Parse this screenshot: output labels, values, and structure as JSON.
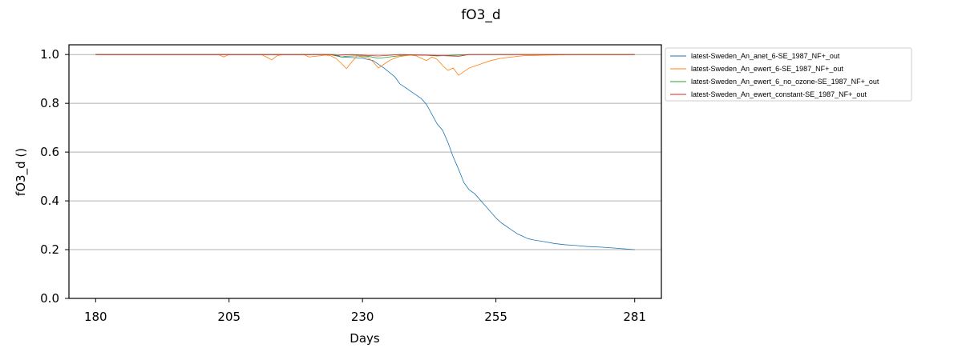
{
  "chart_data": {
    "type": "line",
    "title": "fO3_d",
    "xlabel": "Days",
    "ylabel": "fO3_d ()",
    "xlim": [
      175,
      286
    ],
    "ylim": [
      0,
      1.04
    ],
    "x_ticks": [
      180,
      205,
      230,
      255,
      281
    ],
    "y_ticks": [
      0.0,
      0.2,
      0.4,
      0.6,
      0.8,
      1.0
    ],
    "y_tick_labels": [
      "0.0",
      "0.2",
      "0.4",
      "0.6",
      "0.8",
      "1.0"
    ],
    "grid": "y",
    "legend_position": "outside-top-right",
    "series": [
      {
        "name": "latest-Sweden_An_anet_6-SE_1987_NF+_out",
        "color": "#1f77b4",
        "points": [
          [
            180,
            1.0
          ],
          [
            224,
            1.0
          ],
          [
            226,
            0.99
          ],
          [
            228,
            0.988
          ],
          [
            230,
            0.985
          ],
          [
            232,
            0.975
          ],
          [
            234,
            0.945
          ],
          [
            236,
            0.91
          ],
          [
            237,
            0.88
          ],
          [
            239,
            0.85
          ],
          [
            241,
            0.82
          ],
          [
            242,
            0.795
          ],
          [
            243,
            0.755
          ],
          [
            244,
            0.715
          ],
          [
            245,
            0.69
          ],
          [
            246,
            0.64
          ],
          [
            247,
            0.58
          ],
          [
            248,
            0.53
          ],
          [
            249,
            0.475
          ],
          [
            250,
            0.445
          ],
          [
            251,
            0.43
          ],
          [
            252,
            0.405
          ],
          [
            253,
            0.38
          ],
          [
            254,
            0.355
          ],
          [
            255,
            0.33
          ],
          [
            256,
            0.31
          ],
          [
            258,
            0.28
          ],
          [
            259,
            0.265
          ],
          [
            260,
            0.255
          ],
          [
            261,
            0.245
          ],
          [
            262,
            0.24
          ],
          [
            264,
            0.233
          ],
          [
            266,
            0.225
          ],
          [
            268,
            0.22
          ],
          [
            270,
            0.217
          ],
          [
            272,
            0.213
          ],
          [
            275,
            0.21
          ],
          [
            278,
            0.205
          ],
          [
            281,
            0.2
          ]
        ]
      },
      {
        "name": "latest-Sweden_An_ewert_6-SE_1987_NF+_out",
        "color": "#ff7f0e",
        "points": [
          [
            180,
            1.0
          ],
          [
            203,
            1.0
          ],
          [
            204,
            0.99
          ],
          [
            205,
            1.0
          ],
          [
            211,
            1.0
          ],
          [
            212,
            0.99
          ],
          [
            213,
            0.978
          ],
          [
            214,
            0.995
          ],
          [
            215,
            1.0
          ],
          [
            219,
            1.0
          ],
          [
            220,
            0.99
          ],
          [
            222,
            0.995
          ],
          [
            223,
            0.998
          ],
          [
            224,
            0.995
          ],
          [
            225,
            0.985
          ],
          [
            226,
            0.965
          ],
          [
            227,
            0.942
          ],
          [
            228,
            0.97
          ],
          [
            229,
            0.995
          ],
          [
            230,
            0.99
          ],
          [
            231,
            0.988
          ],
          [
            232,
            0.97
          ],
          [
            233,
            0.945
          ],
          [
            234,
            0.96
          ],
          [
            235,
            0.975
          ],
          [
            236,
            0.985
          ],
          [
            237,
            0.992
          ],
          [
            238,
            0.995
          ],
          [
            239,
            0.998
          ],
          [
            240,
            0.995
          ],
          [
            241,
            0.985
          ],
          [
            242,
            0.975
          ],
          [
            243,
            0.99
          ],
          [
            244,
            0.98
          ],
          [
            245,
            0.955
          ],
          [
            246,
            0.935
          ],
          [
            247,
            0.945
          ],
          [
            248,
            0.915
          ],
          [
            249,
            0.93
          ],
          [
            250,
            0.945
          ],
          [
            252,
            0.96
          ],
          [
            254,
            0.975
          ],
          [
            256,
            0.985
          ],
          [
            258,
            0.99
          ],
          [
            260,
            0.995
          ],
          [
            265,
            0.998
          ],
          [
            270,
            1.0
          ],
          [
            281,
            1.0
          ]
        ]
      },
      {
        "name": "latest-Sweden_An_ewert_6_no_ozone-SE_1987_NF+_out",
        "color": "#2ca02c",
        "points": [
          [
            180,
            1.0
          ],
          [
            225,
            1.0
          ],
          [
            226,
            0.99
          ],
          [
            227,
            0.993
          ],
          [
            229,
            0.995
          ],
          [
            231,
            0.993
          ],
          [
            233,
            0.985
          ],
          [
            235,
            0.99
          ],
          [
            238,
            0.998
          ],
          [
            242,
            0.997
          ],
          [
            244,
            0.994
          ],
          [
            246,
            0.996
          ],
          [
            248,
            0.998
          ],
          [
            250,
            1.0
          ],
          [
            281,
            1.0
          ]
        ]
      },
      {
        "name": "latest-Sweden_An_ewert_constant-SE_1987_NF+_out",
        "color": "#d62728",
        "points": [
          [
            180,
            1.0
          ],
          [
            224,
            1.0
          ],
          [
            225,
            0.996
          ],
          [
            226,
            0.998
          ],
          [
            228,
            1.0
          ],
          [
            231,
            0.996
          ],
          [
            233,
            0.994
          ],
          [
            235,
            0.997
          ],
          [
            237,
            1.0
          ],
          [
            244,
            0.996
          ],
          [
            248,
            0.993
          ],
          [
            250,
            1.0
          ],
          [
            281,
            1.0
          ]
        ]
      }
    ]
  }
}
